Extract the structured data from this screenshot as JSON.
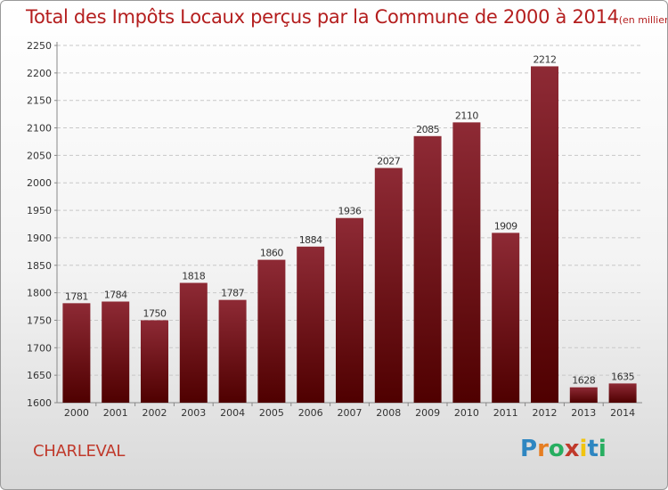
{
  "chart_data": {
    "type": "bar",
    "title": "Total des Impôts Locaux perçus par la Commune de 2000 à 2014",
    "title_unit": "(en milliers d'€)",
    "categories": [
      "2000",
      "2001",
      "2002",
      "2003",
      "2004",
      "2005",
      "2006",
      "2007",
      "2008",
      "2009",
      "2010",
      "2011",
      "2012",
      "2013",
      "2014"
    ],
    "values": [
      1781,
      1784,
      1750,
      1818,
      1787,
      1860,
      1884,
      1936,
      2027,
      2085,
      2110,
      1909,
      2212,
      1628,
      1635
    ],
    "ylim": [
      1600,
      2250
    ],
    "yticks": [
      1600,
      1650,
      1700,
      1750,
      1800,
      1850,
      1900,
      1950,
      2000,
      2050,
      2100,
      2150,
      2200,
      2250
    ],
    "grid": "horizontal-dashed",
    "bar_color_top": "#8e2a35",
    "bar_color_bottom": "#4f0000"
  },
  "commune": "CHARLEVAL",
  "logo": {
    "text": "Proxiti",
    "letters": [
      {
        "ch": "P",
        "color": "#2e86c1"
      },
      {
        "ch": "r",
        "color": "#e67e22"
      },
      {
        "ch": "o",
        "color": "#27ae60"
      },
      {
        "ch": "x",
        "color": "#c0392b"
      },
      {
        "ch": "i",
        "color": "#f1c40f"
      },
      {
        "ch": "t",
        "color": "#2e86c1"
      },
      {
        "ch": "i",
        "color": "#27ae60"
      }
    ]
  }
}
